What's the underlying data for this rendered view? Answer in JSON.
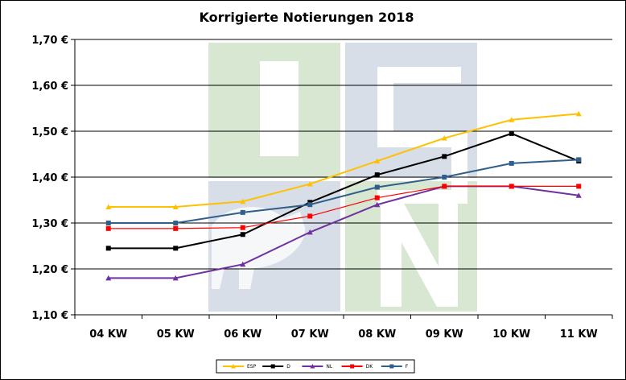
{
  "chart_data": {
    "type": "line",
    "title": "Korrigierte Notierungen 2018",
    "xlabel": "",
    "ylabel": "",
    "categories": [
      "04 KW",
      "05 KW",
      "06 KW",
      "07 KW",
      "08 KW",
      "09 KW",
      "10 KW",
      "11 KW"
    ],
    "ylim": [
      1.1,
      1.7
    ],
    "yticks": [
      1.1,
      1.2,
      1.3,
      1.4,
      1.5,
      1.6,
      1.7
    ],
    "ytick_labels": [
      "1,10 €",
      "1,20 €",
      "1,30 €",
      "1,40 €",
      "1,50 €",
      "1,60 €",
      "1,70 €"
    ],
    "grid": true,
    "legend_position": "bottom",
    "series": [
      {
        "name": "ESP",
        "color": "#FFC000",
        "marker": "triangle",
        "values": [
          1.335,
          1.335,
          1.347,
          1.385,
          1.435,
          1.485,
          1.525,
          1.538
        ]
      },
      {
        "name": "D",
        "color": "#000000",
        "marker": "square",
        "values": [
          1.245,
          1.245,
          1.275,
          1.345,
          1.405,
          1.445,
          1.495,
          1.435
        ]
      },
      {
        "name": "NL",
        "color": "#7030A0",
        "marker": "triangle",
        "values": [
          1.18,
          1.18,
          1.21,
          1.28,
          1.34,
          1.38,
          1.38,
          1.36
        ]
      },
      {
        "name": "DK",
        "color": "#FF0000",
        "marker": "square",
        "values": [
          1.288,
          1.288,
          1.29,
          1.315,
          1.355,
          1.38,
          1.38,
          1.38
        ]
      },
      {
        "name": "F",
        "color": "#2F5F8A",
        "marker": "square",
        "values": [
          1.3,
          1.3,
          1.323,
          1.34,
          1.378,
          1.4,
          1.43,
          1.438
        ]
      }
    ]
  },
  "watermark": {
    "text": "ISN",
    "colors": {
      "green": "#D7E7D2",
      "blue": "#D8DEE8"
    }
  }
}
